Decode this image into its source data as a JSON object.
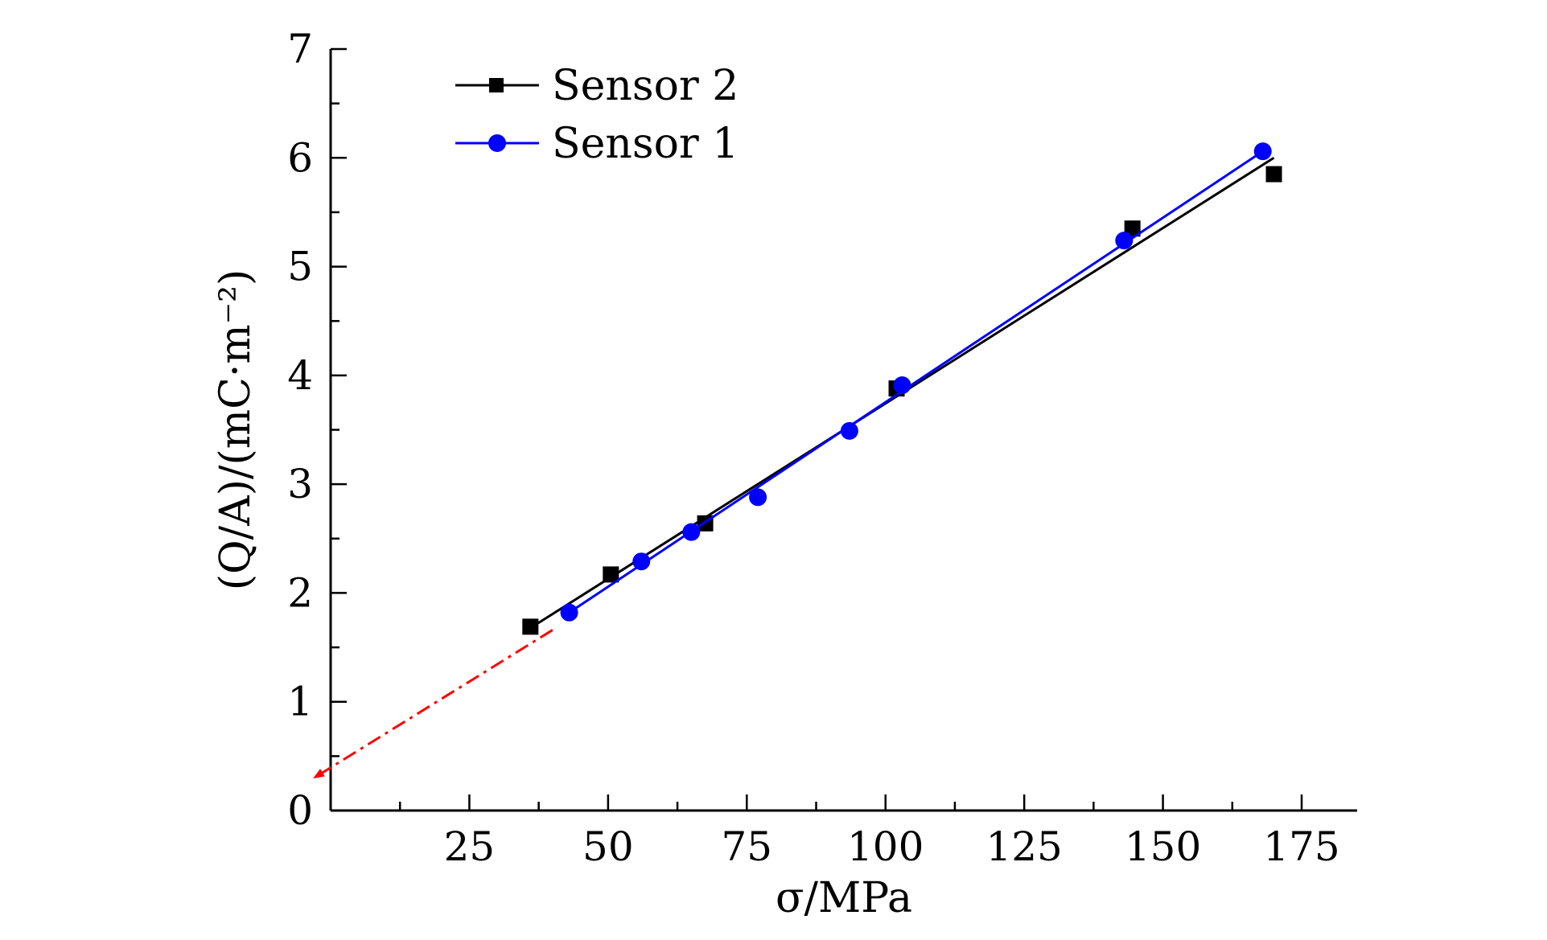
{
  "chart_data": {
    "type": "scatter",
    "xlabel": "σ/MPa",
    "ylabel": "(Q/A)/(mC·m⁻²)",
    "xlim": [
      0,
      185
    ],
    "ylim": [
      0,
      7
    ],
    "x_ticks": [
      25,
      50,
      75,
      100,
      125,
      150,
      175
    ],
    "y_ticks": [
      0,
      1,
      2,
      3,
      4,
      5,
      6,
      7
    ],
    "grid": false,
    "legend_position": "top-left",
    "series": [
      {
        "name": "Sensor 2",
        "marker": "square",
        "color": "#000000",
        "points": [
          {
            "x": 36,
            "y": 1.69
          },
          {
            "x": 50.5,
            "y": 2.17
          },
          {
            "x": 67.5,
            "y": 2.64
          },
          {
            "x": 102,
            "y": 3.88
          },
          {
            "x": 144.5,
            "y": 5.35
          },
          {
            "x": 170,
            "y": 5.85
          }
        ],
        "fit_line": [
          {
            "x": 37,
            "y": 1.71
          },
          {
            "x": 170,
            "y": 6.0
          }
        ]
      },
      {
        "name": "Sensor 1",
        "marker": "circle",
        "color": "#0000ff",
        "points": [
          {
            "x": 43,
            "y": 1.82
          },
          {
            "x": 56,
            "y": 2.29
          },
          {
            "x": 65,
            "y": 2.56
          },
          {
            "x": 77,
            "y": 2.88
          },
          {
            "x": 93.5,
            "y": 3.49
          },
          {
            "x": 103,
            "y": 3.91
          },
          {
            "x": 143,
            "y": 5.24
          },
          {
            "x": 168,
            "y": 6.06
          }
        ],
        "fit_line": [
          {
            "x": 43,
            "y": 1.82
          },
          {
            "x": 168,
            "y": 6.06
          }
        ]
      }
    ],
    "annotations": [
      {
        "type": "extrapolation-arrow",
        "color": "#ff0000",
        "style": "dash-dot",
        "from": {
          "x": 40,
          "y": 1.66
        },
        "to": {
          "x": -3,
          "y": 0.3
        }
      }
    ]
  }
}
